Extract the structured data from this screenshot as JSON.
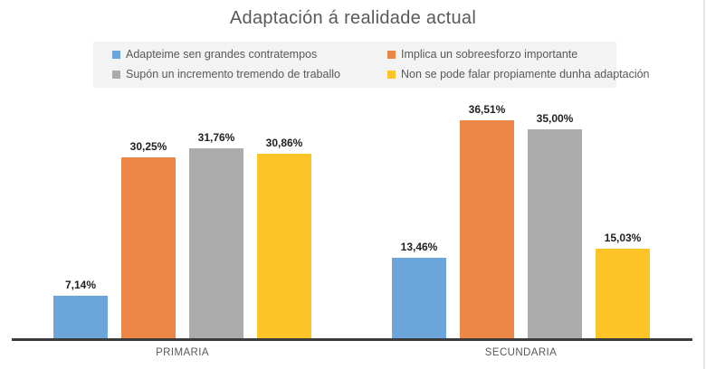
{
  "chart_data": {
    "type": "bar",
    "title": "Adaptación á realidade actual",
    "categories": [
      "PRIMARIA",
      "SECUNDARIA"
    ],
    "series": [
      {
        "name": "Adapteime sen grandes contratempos",
        "color": "#6ca5da",
        "values": [
          7.14,
          13.46
        ],
        "labels": [
          "7,14%",
          "13,46%"
        ]
      },
      {
        "name": "Implica un sobreesforzo importante",
        "color": "#ed8747",
        "values": [
          30.25,
          36.51
        ],
        "labels": [
          "30,25%",
          "36,51%"
        ]
      },
      {
        "name": "Supón un incremento tremendo de traballo",
        "color": "#ababab",
        "values": [
          31.76,
          35.0
        ],
        "labels": [
          "31,76%",
          "35,00%"
        ]
      },
      {
        "name": "Non se pode falar propiamente dunha adaptación",
        "color": "#fdc428",
        "values": [
          30.86,
          15.03
        ],
        "labels": [
          "30,86%",
          "15,03%"
        ]
      }
    ],
    "ylim": [
      0,
      40
    ],
    "y_axis_visible": false,
    "grid": false,
    "data_labels": true,
    "legend_position": "top",
    "colors": {
      "title_text": "#595959",
      "legend_background": "#f3f3f3",
      "legend_text": "#595959",
      "data_label_text": "#212121",
      "axis_line": "#3b3b3b",
      "category_text": "#595959",
      "background": "#ffffff"
    }
  }
}
